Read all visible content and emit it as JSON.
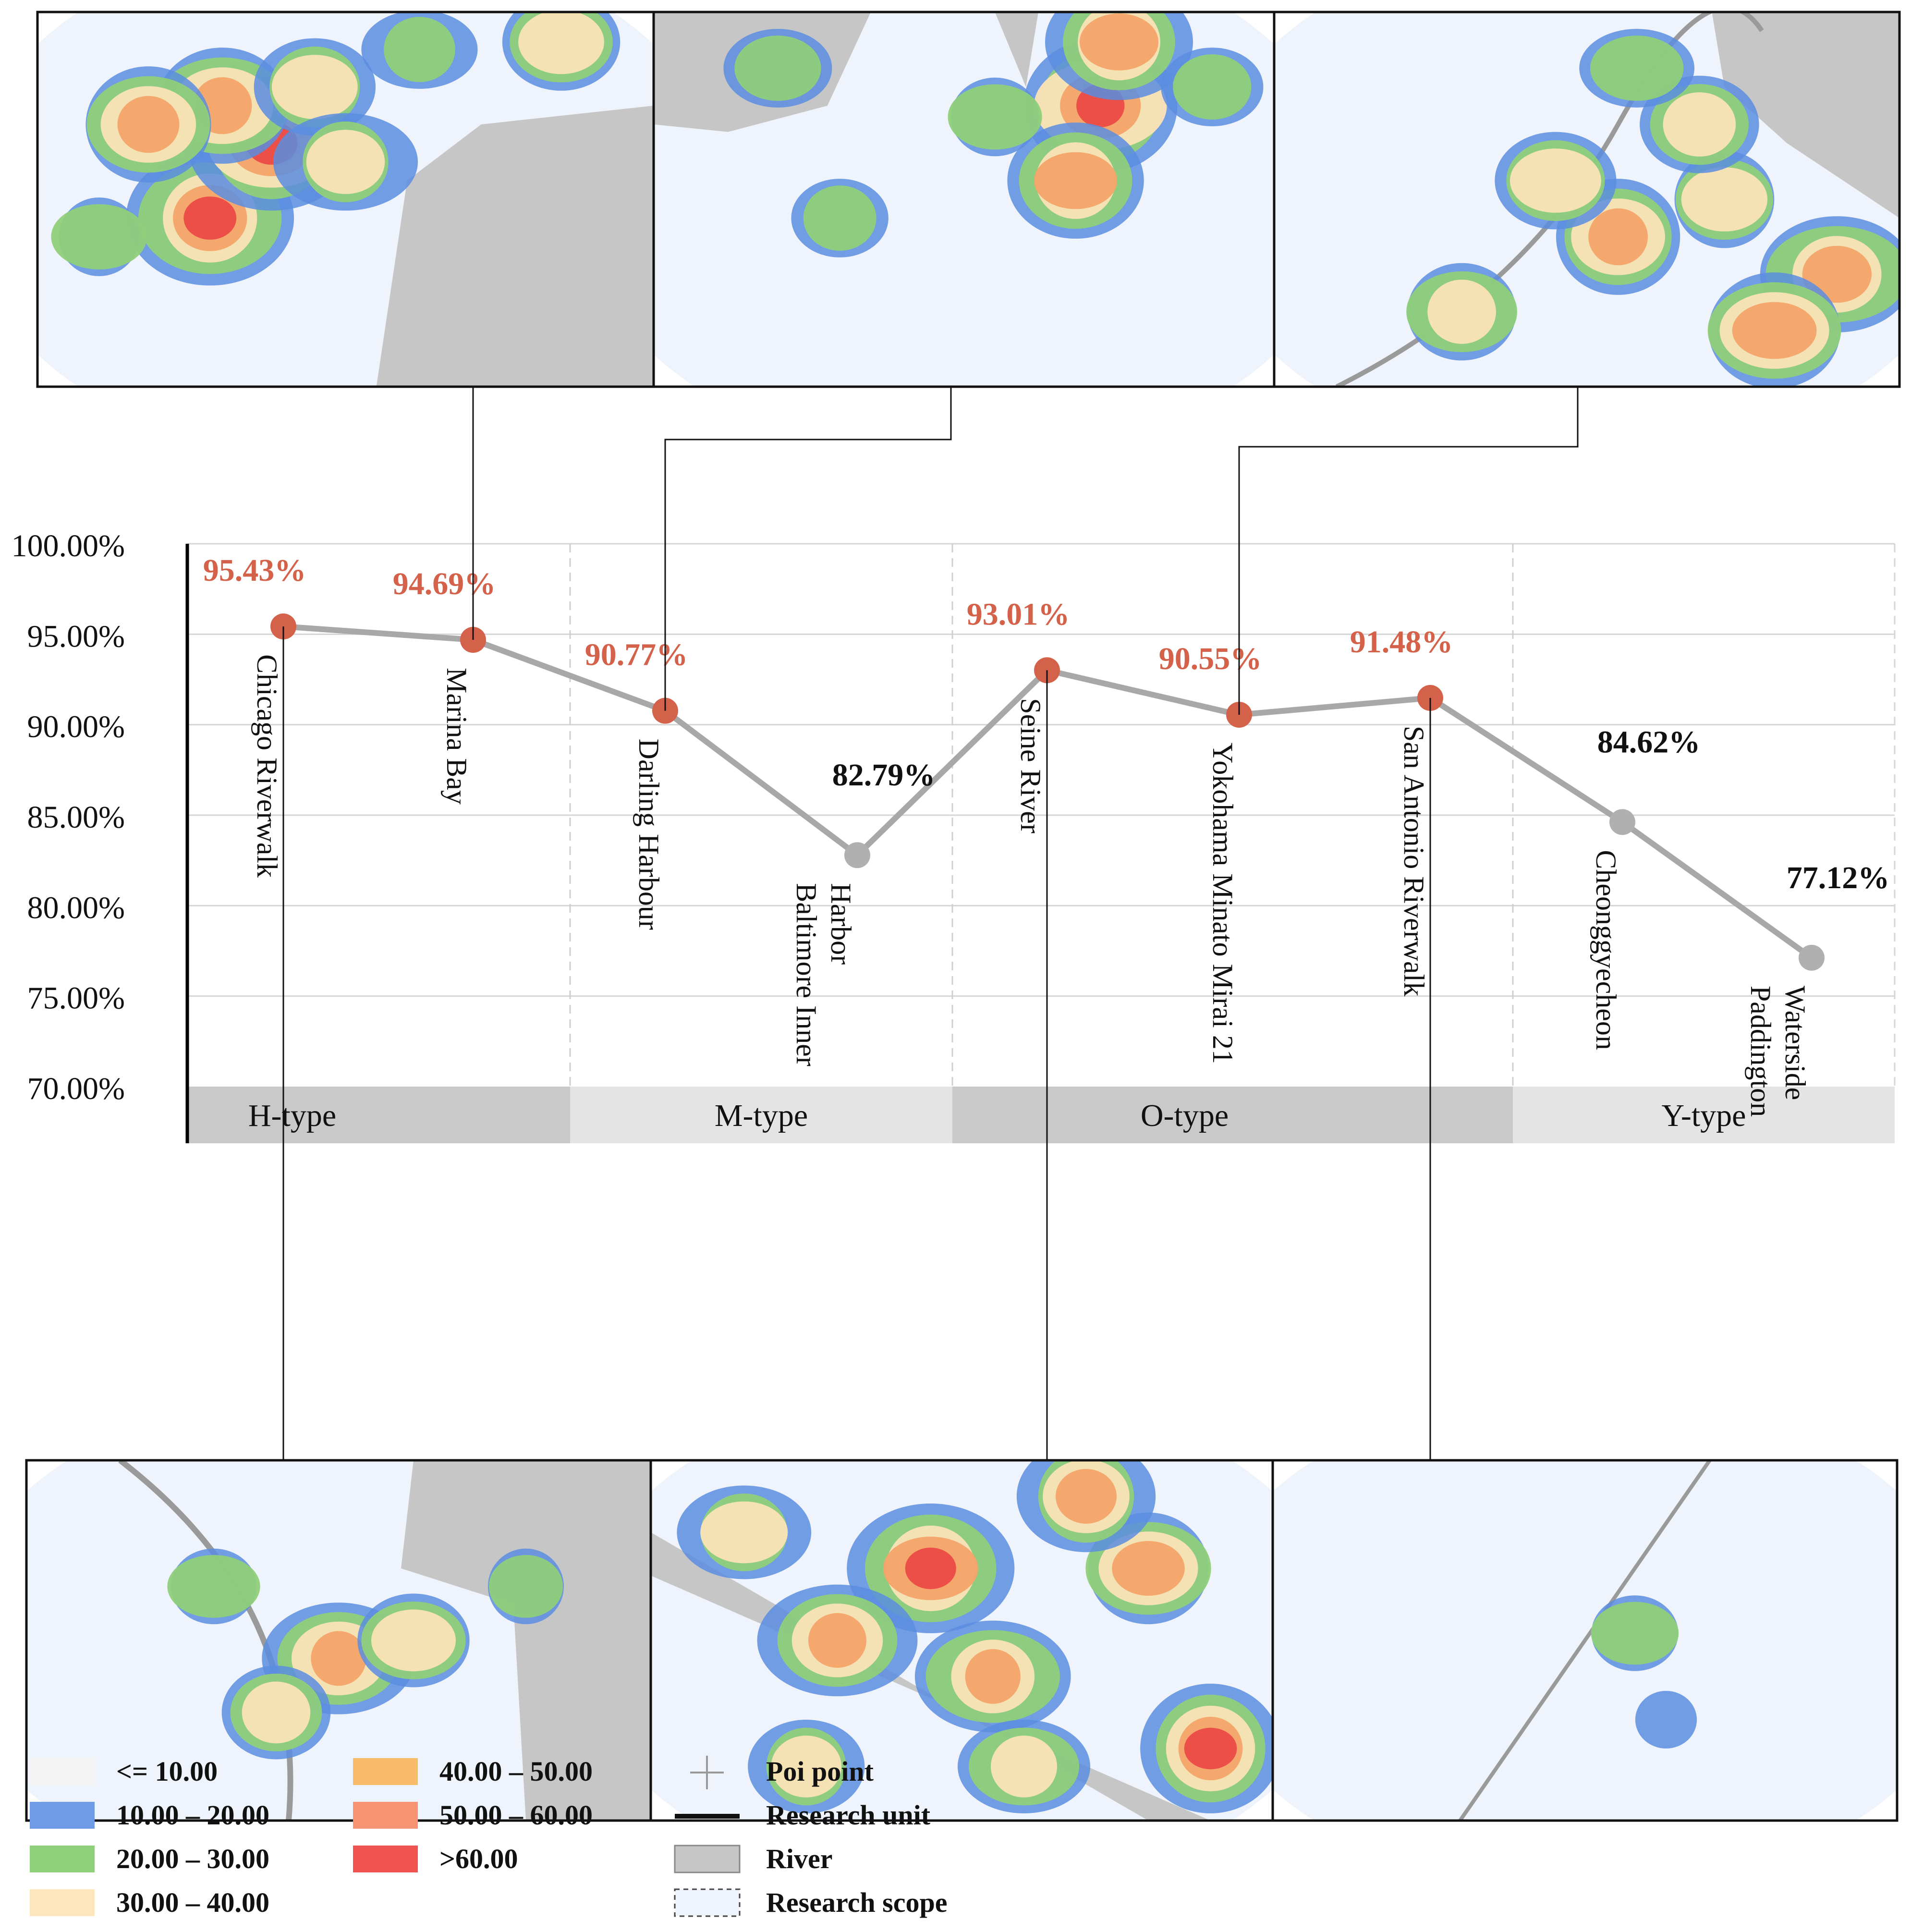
{
  "chart_data": {
    "type": "line",
    "categories": [
      "Chicago Riverwalk",
      "Marina Bay",
      "Darling Harbour",
      "Baltimore Inner Harbor",
      "Seine River",
      "Yokohama Minato Mirai 21",
      "San Antonio Riverwalk",
      "Cheonggyecheon",
      "Paddington Waterside"
    ],
    "category_labels": [
      [
        "Chicago Riverwalk"
      ],
      [
        "Marina Bay"
      ],
      [
        "Darling Harbour"
      ],
      [
        "Baltimore Inner",
        "Harbor"
      ],
      [
        "Seine River"
      ],
      [
        "Yokohama Minato Mirai 21"
      ],
      [
        "San Antonio Riverwalk"
      ],
      [
        "Cheonggyecheon"
      ],
      [
        "Paddington",
        "Waterside"
      ]
    ],
    "values": [
      95.43,
      94.69,
      90.77,
      82.79,
      93.01,
      90.55,
      91.48,
      84.62,
      77.12
    ],
    "value_labels": [
      "95.43%",
      "94.69%",
      "90.77%",
      "82.79%",
      "93.01%",
      "90.55%",
      "91.48%",
      "84.62%",
      "77.12%"
    ],
    "highlight": [
      true,
      true,
      true,
      false,
      true,
      true,
      true,
      false,
      false
    ],
    "ylim": [
      70,
      100
    ],
    "yticks": [
      70,
      75,
      80,
      85,
      90,
      95,
      100
    ],
    "ytick_labels": [
      "70.00%",
      "75.00%",
      "80.00%",
      "85.00%",
      "90.00%",
      "95.00%",
      "100.00%"
    ],
    "groups": [
      {
        "label": "H-type",
        "start": 0,
        "end": 1
      },
      {
        "label": "M-type",
        "start": 2,
        "end": 3
      },
      {
        "label": "O-type",
        "start": 4,
        "end": 6
      },
      {
        "label": "Y-type",
        "start": 7,
        "end": 8
      }
    ],
    "title": "",
    "xlabel": "",
    "ylabel": "",
    "grid": true
  },
  "colors": {
    "highlight": "#d4624a",
    "normal": "#b0b0b0",
    "line": "#a8a8a8",
    "label_highlight": "#d4624a",
    "label_normal": "#111111",
    "group_dark": "#c9c9c9",
    "group_light": "#e4e4e4",
    "map_bg": "#eef3fc",
    "land": "#c6c6c6",
    "heat_blue": "#5b8de0",
    "heat_green": "#8fcf7a",
    "heat_cream": "#fbe3b6",
    "heat_orange": "#f4a46a",
    "heat_red": "#ea4a44"
  },
  "maps": [
    {
      "id": "top-1",
      "linked_category": 1
    },
    {
      "id": "top-2",
      "linked_category": 2
    },
    {
      "id": "top-3",
      "linked_category": 5
    },
    {
      "id": "bottom-1",
      "linked_category": 0
    },
    {
      "id": "bottom-2",
      "linked_category": 4
    },
    {
      "id": "bottom-3",
      "linked_category": 6
    }
  ],
  "legend": {
    "density": [
      {
        "label": "<= 10.00",
        "color": "#f3f3f3"
      },
      {
        "label": "10.00 – 20.00",
        "color": "#6e9ae6"
      },
      {
        "label": "20.00 – 30.00",
        "color": "#8fd07c"
      },
      {
        "label": "30.00 – 40.00",
        "color": "#fde5bd"
      },
      {
        "label": "40.00 – 50.00",
        "color": "#f8bb6a"
      },
      {
        "label": "50.00 – 60.00",
        "color": "#f59373"
      },
      {
        "label": ">60.00",
        "color": "#ef5350"
      }
    ],
    "symbols": [
      {
        "label": "Poi point",
        "symbol": "plus-icon"
      },
      {
        "label": "Research unit",
        "symbol": "line-icon"
      },
      {
        "label": "River",
        "symbol": "river-swatch"
      },
      {
        "label": "Research scope",
        "symbol": "dashed-rect-icon"
      }
    ]
  }
}
